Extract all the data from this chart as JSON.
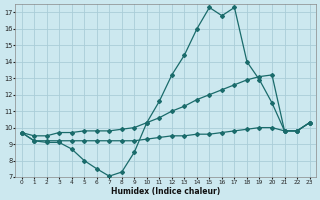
{
  "xlabel": "Humidex (Indice chaleur)",
  "background_color": "#cce8ef",
  "grid_color": "#aacdd8",
  "line_color": "#1a6b6b",
  "xlim": [
    -0.5,
    23.5
  ],
  "ylim": [
    7,
    17.5
  ],
  "xticks": [
    0,
    1,
    2,
    3,
    4,
    5,
    6,
    7,
    8,
    9,
    10,
    11,
    12,
    13,
    14,
    15,
    16,
    17,
    18,
    19,
    20,
    21,
    22,
    23
  ],
  "yticks": [
    7,
    8,
    9,
    10,
    11,
    12,
    13,
    14,
    15,
    16,
    17
  ],
  "line1_x": [
    0,
    1,
    2,
    3,
    4,
    5,
    6,
    7,
    8,
    9,
    10,
    11,
    12,
    13,
    14,
    15,
    16,
    17,
    18,
    19,
    20,
    21,
    22,
    23
  ],
  "line1_y": [
    9.7,
    9.2,
    9.1,
    9.1,
    8.7,
    8.0,
    7.5,
    7.05,
    7.3,
    8.5,
    10.3,
    11.6,
    13.2,
    14.4,
    16.0,
    17.3,
    16.8,
    17.3,
    14.0,
    12.9,
    11.5,
    9.8,
    9.8,
    10.3
  ],
  "line2_x": [
    0,
    1,
    2,
    3,
    4,
    5,
    6,
    7,
    8,
    9,
    10,
    11,
    12,
    13,
    14,
    15,
    16,
    17,
    18,
    19,
    20,
    21,
    22,
    23
  ],
  "line2_y": [
    9.7,
    9.5,
    9.5,
    9.7,
    9.7,
    9.8,
    9.8,
    9.8,
    9.9,
    10.0,
    10.3,
    10.6,
    11.0,
    11.3,
    11.7,
    12.0,
    12.3,
    12.6,
    12.9,
    13.1,
    13.2,
    9.8,
    9.8,
    10.3
  ],
  "line3_x": [
    0,
    1,
    2,
    3,
    4,
    5,
    6,
    7,
    8,
    9,
    10,
    11,
    12,
    13,
    14,
    15,
    16,
    17,
    18,
    19,
    20,
    21,
    22,
    23
  ],
  "line3_y": [
    9.7,
    9.2,
    9.2,
    9.2,
    9.2,
    9.2,
    9.2,
    9.2,
    9.2,
    9.2,
    9.3,
    9.4,
    9.5,
    9.5,
    9.6,
    9.6,
    9.7,
    9.8,
    9.9,
    10.0,
    10.0,
    9.8,
    9.8,
    10.3
  ]
}
